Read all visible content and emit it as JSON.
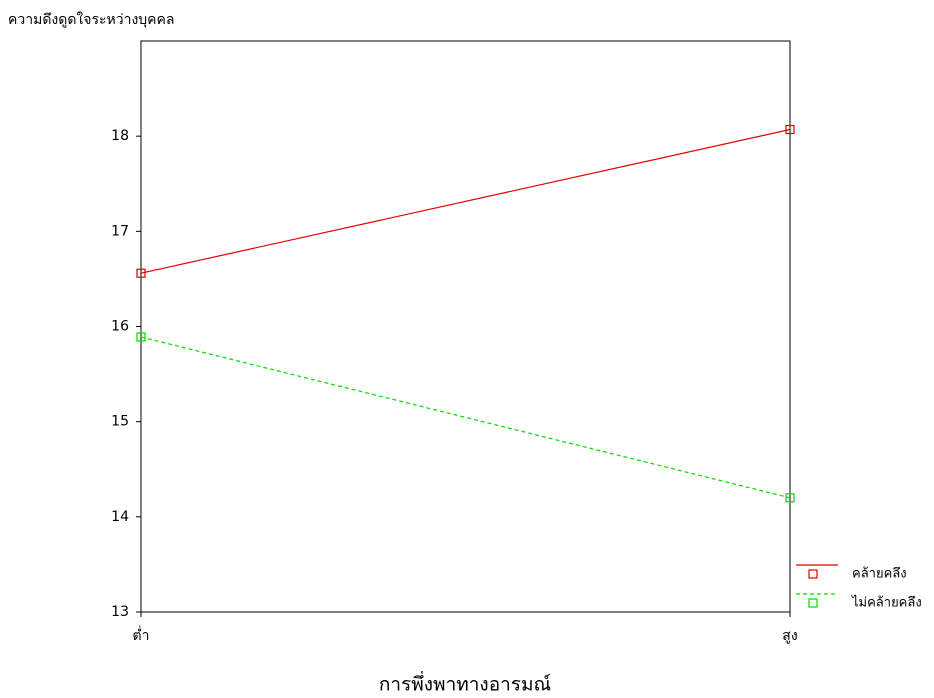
{
  "chart_data": {
    "type": "line",
    "ylabel": "ความดึงดูดใจระหว่างบุคคล",
    "xlabel": "การพึ่งพาทางอารมณ์",
    "categories": [
      "ต่ำ",
      "สูง"
    ],
    "series": [
      {
        "name": "คล้ายคลึง",
        "color": "#e00000",
        "dashed": false,
        "values": [
          16.56,
          18.07
        ]
      },
      {
        "name": "ไม่คล้ายคลึง",
        "color": "#00dd00",
        "dashed": true,
        "values": [
          15.89,
          14.2
        ]
      }
    ],
    "ylim": [
      13,
      19
    ],
    "yticks": [
      13,
      14,
      15,
      16,
      17,
      18
    ],
    "legend": "lower right"
  }
}
